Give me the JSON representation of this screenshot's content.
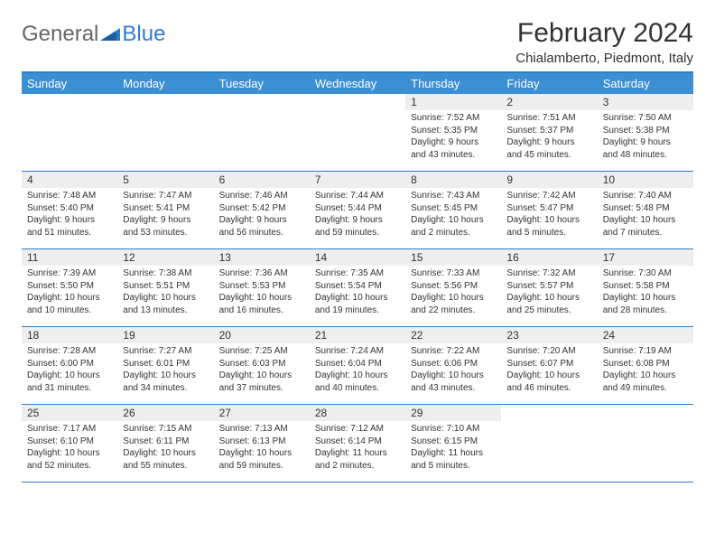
{
  "logo": {
    "text1": "General",
    "text2": "Blue"
  },
  "title": "February 2024",
  "location": "Chialamberto, Piedmont, Italy",
  "day_headers": [
    "Sunday",
    "Monday",
    "Tuesday",
    "Wednesday",
    "Thursday",
    "Friday",
    "Saturday"
  ],
  "colors": {
    "header_bg": "#3d8fd4",
    "header_border": "#2d7dc9",
    "day_bg": "#eeeeee",
    "text": "#333333"
  },
  "weeks": [
    [
      null,
      null,
      null,
      null,
      {
        "num": "1",
        "sunrise": "7:52 AM",
        "sunset": "5:35 PM",
        "daylight": "9 hours and 43 minutes."
      },
      {
        "num": "2",
        "sunrise": "7:51 AM",
        "sunset": "5:37 PM",
        "daylight": "9 hours and 45 minutes."
      },
      {
        "num": "3",
        "sunrise": "7:50 AM",
        "sunset": "5:38 PM",
        "daylight": "9 hours and 48 minutes."
      }
    ],
    [
      {
        "num": "4",
        "sunrise": "7:48 AM",
        "sunset": "5:40 PM",
        "daylight": "9 hours and 51 minutes."
      },
      {
        "num": "5",
        "sunrise": "7:47 AM",
        "sunset": "5:41 PM",
        "daylight": "9 hours and 53 minutes."
      },
      {
        "num": "6",
        "sunrise": "7:46 AM",
        "sunset": "5:42 PM",
        "daylight": "9 hours and 56 minutes."
      },
      {
        "num": "7",
        "sunrise": "7:44 AM",
        "sunset": "5:44 PM",
        "daylight": "9 hours and 59 minutes."
      },
      {
        "num": "8",
        "sunrise": "7:43 AM",
        "sunset": "5:45 PM",
        "daylight": "10 hours and 2 minutes."
      },
      {
        "num": "9",
        "sunrise": "7:42 AM",
        "sunset": "5:47 PM",
        "daylight": "10 hours and 5 minutes."
      },
      {
        "num": "10",
        "sunrise": "7:40 AM",
        "sunset": "5:48 PM",
        "daylight": "10 hours and 7 minutes."
      }
    ],
    [
      {
        "num": "11",
        "sunrise": "7:39 AM",
        "sunset": "5:50 PM",
        "daylight": "10 hours and 10 minutes."
      },
      {
        "num": "12",
        "sunrise": "7:38 AM",
        "sunset": "5:51 PM",
        "daylight": "10 hours and 13 minutes."
      },
      {
        "num": "13",
        "sunrise": "7:36 AM",
        "sunset": "5:53 PM",
        "daylight": "10 hours and 16 minutes."
      },
      {
        "num": "14",
        "sunrise": "7:35 AM",
        "sunset": "5:54 PM",
        "daylight": "10 hours and 19 minutes."
      },
      {
        "num": "15",
        "sunrise": "7:33 AM",
        "sunset": "5:56 PM",
        "daylight": "10 hours and 22 minutes."
      },
      {
        "num": "16",
        "sunrise": "7:32 AM",
        "sunset": "5:57 PM",
        "daylight": "10 hours and 25 minutes."
      },
      {
        "num": "17",
        "sunrise": "7:30 AM",
        "sunset": "5:58 PM",
        "daylight": "10 hours and 28 minutes."
      }
    ],
    [
      {
        "num": "18",
        "sunrise": "7:28 AM",
        "sunset": "6:00 PM",
        "daylight": "10 hours and 31 minutes."
      },
      {
        "num": "19",
        "sunrise": "7:27 AM",
        "sunset": "6:01 PM",
        "daylight": "10 hours and 34 minutes."
      },
      {
        "num": "20",
        "sunrise": "7:25 AM",
        "sunset": "6:03 PM",
        "daylight": "10 hours and 37 minutes."
      },
      {
        "num": "21",
        "sunrise": "7:24 AM",
        "sunset": "6:04 PM",
        "daylight": "10 hours and 40 minutes."
      },
      {
        "num": "22",
        "sunrise": "7:22 AM",
        "sunset": "6:06 PM",
        "daylight": "10 hours and 43 minutes."
      },
      {
        "num": "23",
        "sunrise": "7:20 AM",
        "sunset": "6:07 PM",
        "daylight": "10 hours and 46 minutes."
      },
      {
        "num": "24",
        "sunrise": "7:19 AM",
        "sunset": "6:08 PM",
        "daylight": "10 hours and 49 minutes."
      }
    ],
    [
      {
        "num": "25",
        "sunrise": "7:17 AM",
        "sunset": "6:10 PM",
        "daylight": "10 hours and 52 minutes."
      },
      {
        "num": "26",
        "sunrise": "7:15 AM",
        "sunset": "6:11 PM",
        "daylight": "10 hours and 55 minutes."
      },
      {
        "num": "27",
        "sunrise": "7:13 AM",
        "sunset": "6:13 PM",
        "daylight": "10 hours and 59 minutes."
      },
      {
        "num": "28",
        "sunrise": "7:12 AM",
        "sunset": "6:14 PM",
        "daylight": "11 hours and 2 minutes."
      },
      {
        "num": "29",
        "sunrise": "7:10 AM",
        "sunset": "6:15 PM",
        "daylight": "11 hours and 5 minutes."
      },
      null,
      null
    ]
  ],
  "labels": {
    "sunrise": "Sunrise:",
    "sunset": "Sunset:",
    "daylight": "Daylight:"
  }
}
